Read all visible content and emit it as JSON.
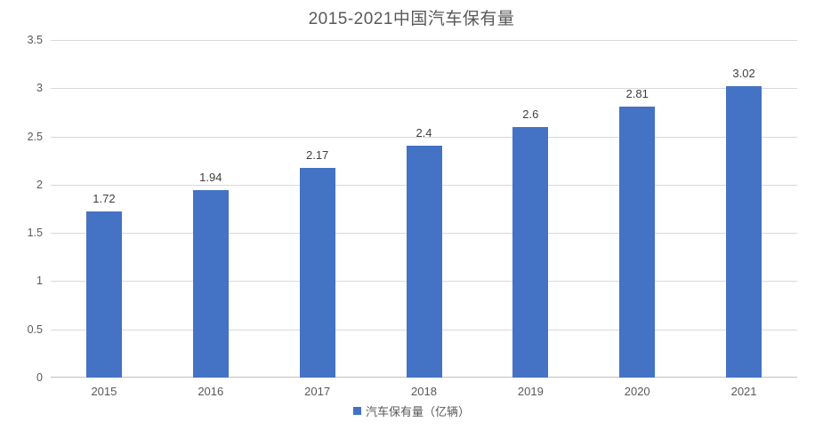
{
  "chart_data": {
    "type": "bar",
    "title": "2015-2021中国汽车保有量",
    "categories": [
      "2015",
      "2016",
      "2017",
      "2018",
      "2019",
      "2020",
      "2021"
    ],
    "values": [
      1.72,
      1.94,
      2.17,
      2.4,
      2.6,
      2.81,
      3.02
    ],
    "value_labels": [
      "1.72",
      "1.94",
      "2.17",
      "2.4",
      "2.6",
      "2.81",
      "3.02"
    ],
    "series_name": "汽车保有量（亿辆）",
    "xlabel": "",
    "ylabel": "",
    "ylim": [
      0,
      3.5
    ],
    "ytick_step": 0.5,
    "ytick_labels": [
      "0",
      "0.5",
      "1",
      "1.5",
      "2",
      "2.5",
      "3",
      "3.5"
    ],
    "grid": true,
    "legend_position": "bottom"
  },
  "legend": {
    "label": "汽车保有量（亿辆）"
  },
  "colors": {
    "bar": "#4472c4",
    "title_text": "#595959",
    "axis_text": "#595959",
    "value_text": "#404040",
    "gridline": "#d9d9d9",
    "axis_line": "#bfbfbf",
    "background": "#ffffff"
  }
}
